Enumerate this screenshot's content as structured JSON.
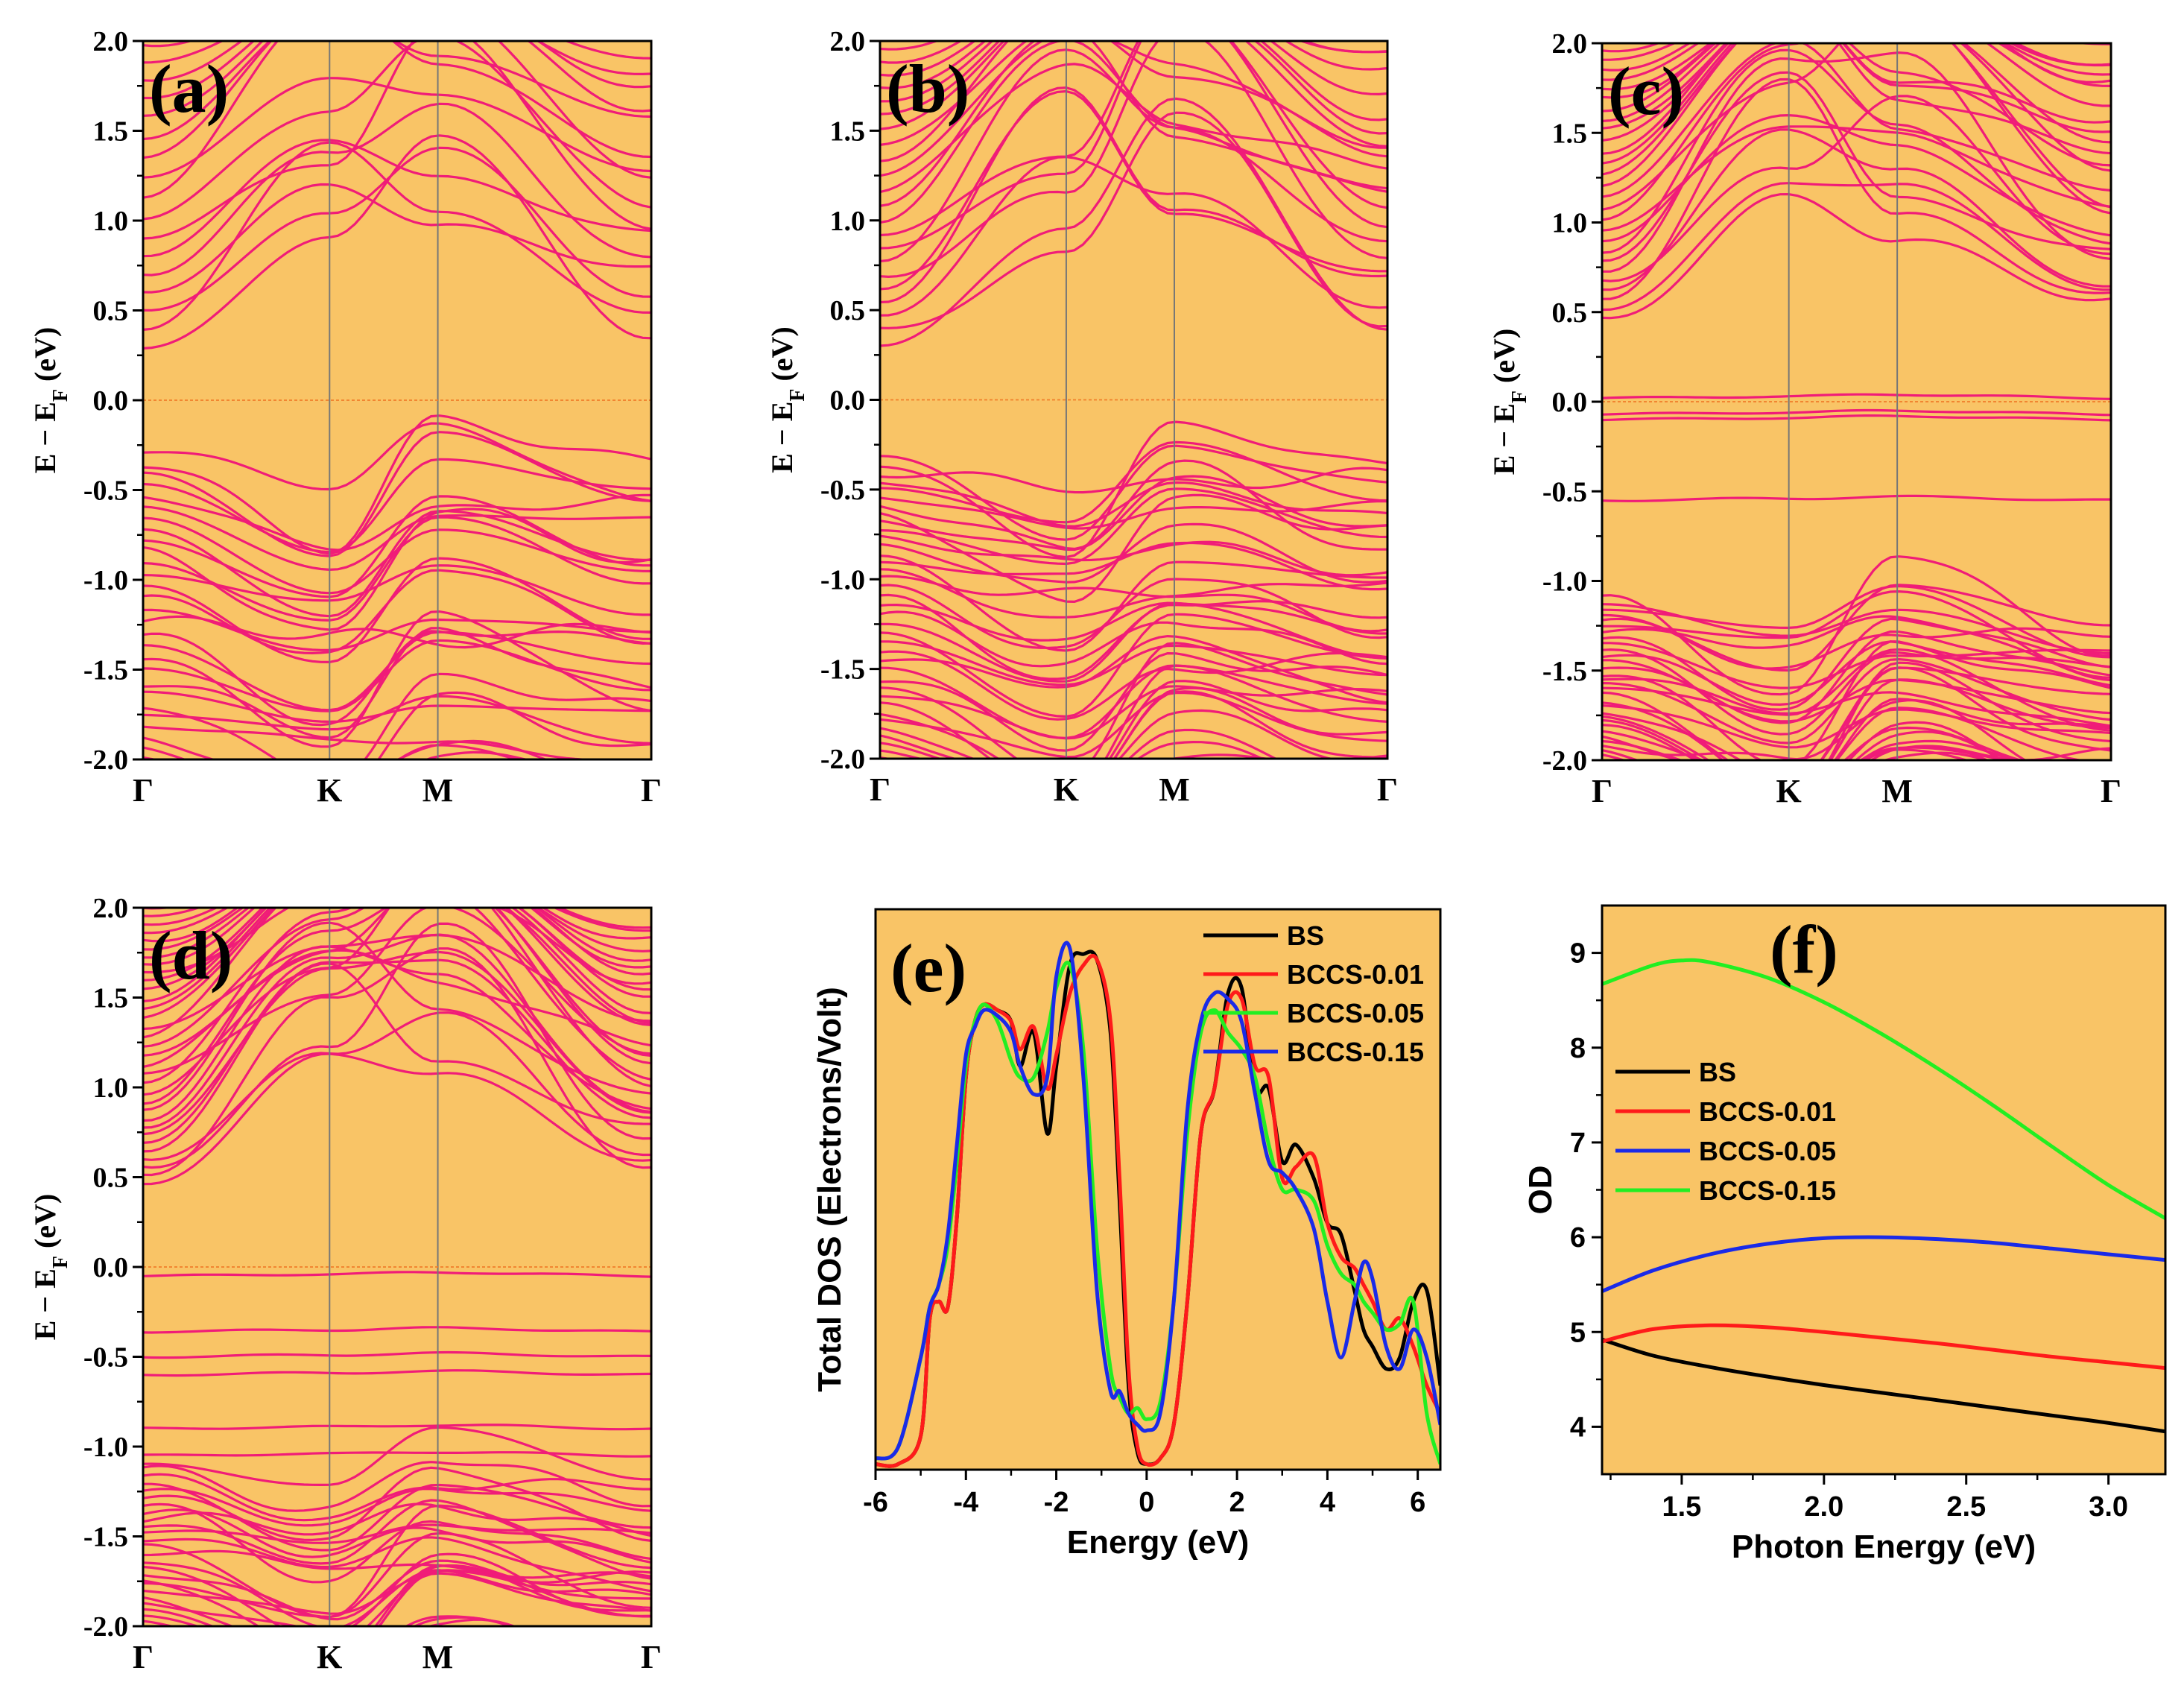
{
  "colors": {
    "panel_bg": "#f9c466",
    "band": "#f01c78",
    "fermi": "#f07d2a",
    "kline": "#777777",
    "BS": "#000000",
    "BCCS-0.01": "#ff1a1a",
    "BCCS-0.05": "#22ee22",
    "BCCS-0.15": "#1a2ae8"
  },
  "chart_data": [
    {
      "panel": "(a)",
      "type": "line",
      "ylabel": "E − E_F (eV)",
      "ylim": [
        -2.0,
        2.0
      ],
      "yticks": [
        "-2.0",
        "-1.5",
        "-1.0",
        "-0.5",
        "0.0",
        "0.5",
        "1.0",
        "1.5",
        "2.0"
      ],
      "kpoints": [
        "Γ",
        "K",
        "M",
        "Γ"
      ],
      "kpos": [
        0,
        0.367,
        0.58,
        1
      ],
      "fermi_line": 0.0,
      "conduction_minimum": 0.28,
      "valence_maximum": -0.27,
      "bands": {
        "conduction_count": 18,
        "valence_count": 30
      }
    },
    {
      "panel": "(b)",
      "type": "line",
      "ylabel": "E − E_F (eV)",
      "ylim": [
        -2.0,
        2.0
      ],
      "yticks": [
        "-2.0",
        "-1.5",
        "-1.0",
        "-0.5",
        "0.0",
        "0.5",
        "1.0",
        "1.5",
        "2.0"
      ],
      "kpoints": [
        "Γ",
        "K",
        "M",
        "Γ"
      ],
      "kpos": [
        0,
        0.367,
        0.58,
        1
      ],
      "fermi_line": 0.0,
      "conduction_minimum": 0.3,
      "valence_maximum": -0.3,
      "bands": {
        "conduction_count": 24,
        "valence_count": 40
      }
    },
    {
      "panel": "(c)",
      "type": "line",
      "ylabel": "E − E_F (eV)",
      "ylim": [
        -2.0,
        2.0
      ],
      "yticks": [
        "-2.0",
        "-1.5",
        "-1.0",
        "-0.5",
        "0.0",
        "0.5",
        "1.0",
        "1.5",
        "2.0"
      ],
      "kpoints": [
        "Γ",
        "K",
        "M",
        "Γ"
      ],
      "kpos": [
        0,
        0.367,
        0.58,
        1
      ],
      "fermi_line": 0.0,
      "flat_bands": [
        0.02,
        -0.07,
        -0.1,
        -0.55
      ],
      "bands": {
        "conduction_count": 30,
        "valence_count": 36
      }
    },
    {
      "panel": "(d)",
      "type": "line",
      "ylabel": "E − E_F (eV)",
      "ylim": [
        -2.0,
        2.0
      ],
      "yticks": [
        "-2.0",
        "-1.5",
        "-1.0",
        "-0.5",
        "0.0",
        "0.5",
        "1.0",
        "1.5",
        "2.0"
      ],
      "kpoints": [
        "Γ",
        "K",
        "M",
        "Γ"
      ],
      "kpos": [
        0,
        0.367,
        0.58,
        1
      ],
      "fermi_line": 0.0,
      "flat_bands": [
        -0.05,
        -0.36,
        -0.5,
        -0.6,
        -0.9,
        -1.05
      ],
      "bands": {
        "conduction_count": 36,
        "valence_count": 30
      }
    },
    {
      "panel": "(e)",
      "type": "line",
      "xlabel": "Energy (eV)",
      "ylabel": "Total DOS (Electrons/Volt)",
      "xlim": [
        -6,
        6.5
      ],
      "ylim": [
        0,
        1.0
      ],
      "xticks": [
        "-6",
        "-4",
        "-2",
        "0",
        "2",
        "4",
        "6"
      ],
      "legend_position": "top-right",
      "series": [
        {
          "name": "BS",
          "color": "#000000",
          "x": [
            -6,
            -5.5,
            -5,
            -4.8,
            -4.6,
            -4.4,
            -4.2,
            -4,
            -3.8,
            -3.6,
            -3.3,
            -3,
            -2.8,
            -2.5,
            -2.2,
            -2,
            -1.7,
            -1.4,
            -1.1,
            -0.8,
            -0.6,
            -0.4,
            -0.2,
            0,
            0.3,
            0.6,
            0.9,
            1.2,
            1.5,
            1.8,
            2.1,
            2.4,
            2.7,
            3.0,
            3.3,
            3.7,
            4.0,
            4.3,
            4.6,
            4.8,
            5.0,
            5.3,
            5.6,
            5.9,
            6.2,
            6.5
          ],
          "y": [
            0.01,
            0.01,
            0.06,
            0.27,
            0.3,
            0.29,
            0.45,
            0.7,
            0.8,
            0.83,
            0.82,
            0.8,
            0.72,
            0.78,
            0.6,
            0.72,
            0.9,
            0.92,
            0.91,
            0.78,
            0.48,
            0.15,
            0.03,
            0.01,
            0.02,
            0.08,
            0.3,
            0.6,
            0.68,
            0.85,
            0.86,
            0.68,
            0.68,
            0.55,
            0.58,
            0.52,
            0.44,
            0.42,
            0.32,
            0.25,
            0.22,
            0.18,
            0.2,
            0.3,
            0.32,
            0.15
          ]
        },
        {
          "name": "BCCS-0.01",
          "color": "#ff1a1a",
          "x": [
            -6,
            -5.5,
            -5,
            -4.8,
            -4.6,
            -4.4,
            -4.2,
            -4,
            -3.8,
            -3.6,
            -3.3,
            -3,
            -2.8,
            -2.5,
            -2.2,
            -2,
            -1.7,
            -1.4,
            -1.1,
            -0.8,
            -0.6,
            -0.4,
            -0.2,
            0,
            0.3,
            0.6,
            0.9,
            1.2,
            1.5,
            1.8,
            2.1,
            2.4,
            2.7,
            3.0,
            3.3,
            3.7,
            4.0,
            4.3,
            4.6,
            4.8,
            5.0,
            5.3,
            5.6,
            5.9,
            6.2,
            6.5
          ],
          "y": [
            0.01,
            0.01,
            0.06,
            0.27,
            0.3,
            0.29,
            0.45,
            0.7,
            0.8,
            0.83,
            0.82,
            0.8,
            0.75,
            0.79,
            0.68,
            0.74,
            0.85,
            0.9,
            0.91,
            0.8,
            0.52,
            0.18,
            0.04,
            0.01,
            0.02,
            0.08,
            0.3,
            0.6,
            0.68,
            0.83,
            0.84,
            0.72,
            0.7,
            0.52,
            0.54,
            0.56,
            0.44,
            0.38,
            0.36,
            0.33,
            0.3,
            0.25,
            0.27,
            0.22,
            0.15,
            0.1
          ]
        },
        {
          "name": "BCCS-0.05",
          "color": "#22ee22",
          "x": [
            -6,
            -5.5,
            -5,
            -4.8,
            -4.6,
            -4.4,
            -4.2,
            -4,
            -3.8,
            -3.6,
            -3.3,
            -3,
            -2.8,
            -2.5,
            -2.2,
            -2,
            -1.7,
            -1.4,
            -1.1,
            -0.8,
            -0.6,
            -0.4,
            -0.2,
            0,
            0.3,
            0.6,
            0.9,
            1.2,
            1.5,
            1.8,
            2.1,
            2.4,
            2.7,
            3.0,
            3.3,
            3.7,
            4.0,
            4.3,
            4.6,
            4.8,
            5.0,
            5.3,
            5.6,
            5.9,
            6.2,
            6.5
          ],
          "y": [
            0.02,
            0.04,
            0.2,
            0.29,
            0.33,
            0.4,
            0.55,
            0.72,
            0.8,
            0.83,
            0.8,
            0.73,
            0.7,
            0.7,
            0.78,
            0.86,
            0.9,
            0.75,
            0.4,
            0.18,
            0.13,
            0.1,
            0.11,
            0.09,
            0.12,
            0.3,
            0.6,
            0.78,
            0.82,
            0.78,
            0.75,
            0.7,
            0.58,
            0.5,
            0.5,
            0.48,
            0.4,
            0.35,
            0.33,
            0.3,
            0.28,
            0.25,
            0.26,
            0.3,
            0.1,
            0.01
          ]
        },
        {
          "name": "BCCS-0.15",
          "color": "#1a2ae8",
          "x": [
            -6,
            -5.5,
            -5,
            -4.8,
            -4.6,
            -4.4,
            -4.2,
            -4,
            -3.8,
            -3.6,
            -3.3,
            -3,
            -2.8,
            -2.5,
            -2.2,
            -2,
            -1.7,
            -1.4,
            -1.1,
            -0.8,
            -0.6,
            -0.4,
            -0.2,
            0,
            0.3,
            0.6,
            0.9,
            1.2,
            1.5,
            1.8,
            2.1,
            2.4,
            2.7,
            3.0,
            3.3,
            3.7,
            4.0,
            4.3,
            4.6,
            4.8,
            5.0,
            5.3,
            5.6,
            5.9,
            6.2,
            6.5
          ],
          "y": [
            0.02,
            0.04,
            0.2,
            0.29,
            0.33,
            0.42,
            0.58,
            0.74,
            0.79,
            0.82,
            0.81,
            0.78,
            0.72,
            0.67,
            0.7,
            0.88,
            0.93,
            0.7,
            0.32,
            0.14,
            0.14,
            0.1,
            0.08,
            0.07,
            0.1,
            0.3,
            0.64,
            0.8,
            0.85,
            0.84,
            0.8,
            0.67,
            0.55,
            0.53,
            0.5,
            0.43,
            0.3,
            0.2,
            0.3,
            0.37,
            0.34,
            0.22,
            0.18,
            0.25,
            0.2,
            0.08
          ]
        }
      ]
    },
    {
      "panel": "(f)",
      "type": "line",
      "xlabel": "Photon Energy (eV)",
      "ylabel": "OD",
      "xlim": [
        1.22,
        3.2
      ],
      "ylim": [
        3.5,
        9.5
      ],
      "xticks": [
        "1.5",
        "2.0",
        "2.5",
        "3.0"
      ],
      "yticks": [
        "4",
        "5",
        "6",
        "7",
        "8",
        "9"
      ],
      "legend_position": "middle-left",
      "series": [
        {
          "name": "BS",
          "color": "#000000",
          "x": [
            1.22,
            1.4,
            1.6,
            1.8,
            2.0,
            2.2,
            2.4,
            2.6,
            2.8,
            3.0,
            3.2
          ],
          "y": [
            4.92,
            4.75,
            4.63,
            4.53,
            4.44,
            4.36,
            4.28,
            4.2,
            4.12,
            4.04,
            3.95
          ]
        },
        {
          "name": "BCCS-0.01",
          "color": "#ff1a1a",
          "x": [
            1.22,
            1.4,
            1.6,
            1.8,
            2.0,
            2.2,
            2.4,
            2.6,
            2.8,
            3.0,
            3.2
          ],
          "y": [
            4.9,
            5.03,
            5.07,
            5.05,
            5.0,
            4.94,
            4.88,
            4.81,
            4.74,
            4.68,
            4.62
          ]
        },
        {
          "name": "BCCS-0.05",
          "color": "#1a2ae8",
          "x": [
            1.22,
            1.4,
            1.6,
            1.8,
            2.0,
            2.2,
            2.4,
            2.6,
            2.8,
            3.0,
            3.2
          ],
          "y": [
            5.43,
            5.65,
            5.82,
            5.93,
            5.99,
            6.0,
            5.98,
            5.94,
            5.88,
            5.82,
            5.76
          ]
        },
        {
          "name": "BCCS-0.15",
          "color": "#22ee22",
          "x": [
            1.22,
            1.4,
            1.5,
            1.6,
            1.8,
            2.0,
            2.2,
            2.4,
            2.6,
            2.8,
            3.0,
            3.2
          ],
          "y": [
            8.67,
            8.87,
            8.92,
            8.9,
            8.74,
            8.48,
            8.15,
            7.78,
            7.38,
            6.96,
            6.55,
            6.2
          ]
        }
      ]
    }
  ]
}
